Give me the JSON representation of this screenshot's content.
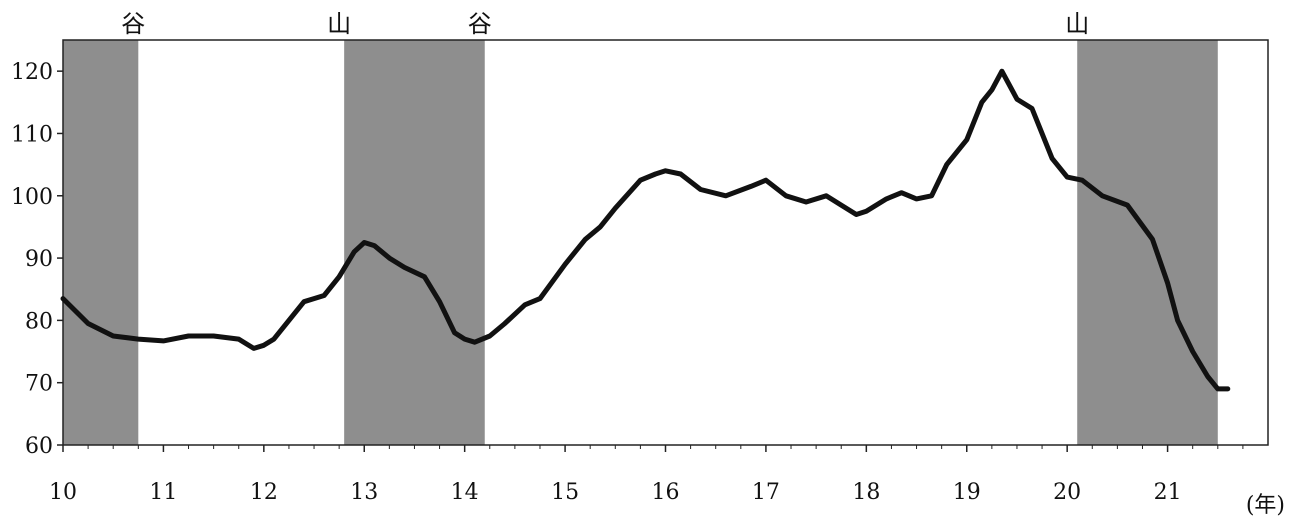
{
  "chart_data": {
    "type": "line",
    "title": "",
    "xlabel": "(年)",
    "ylabel": "",
    "xlim": [
      10,
      22
    ],
    "ylim": [
      60,
      125
    ],
    "x_ticks": [
      10,
      11,
      12,
      13,
      14,
      15,
      16,
      17,
      18,
      19,
      20,
      21
    ],
    "x_tick_labels": [
      "10",
      "11",
      "12",
      "13",
      "14",
      "15",
      "16",
      "17",
      "18",
      "19",
      "20",
      "21"
    ],
    "y_ticks": [
      60,
      70,
      80,
      90,
      100,
      110,
      120
    ],
    "y_tick_labels": [
      "60",
      "70",
      "80",
      "90",
      "100",
      "110",
      "120"
    ],
    "grid": false,
    "colors": {
      "line": "#111111",
      "shade": "#8e8e8e",
      "frame": "#222222"
    },
    "shaded_periods": [
      {
        "start": 10.0,
        "end": 10.75
      },
      {
        "start": 12.8,
        "end": 14.2
      },
      {
        "start": 20.1,
        "end": 21.5
      }
    ],
    "annotations": [
      {
        "text": "谷",
        "x": 10.7
      },
      {
        "text": "山",
        "x": 12.75
      },
      {
        "text": "谷",
        "x": 14.15
      },
      {
        "text": "山",
        "x": 20.1
      }
    ],
    "series": [
      {
        "x": [
          10.0,
          10.25,
          10.5,
          10.75,
          11.0,
          11.25,
          11.5,
          11.75,
          11.9,
          12.0,
          12.1,
          12.25,
          12.4,
          12.5,
          12.6,
          12.75,
          12.9,
          13.0,
          13.1,
          13.25,
          13.4,
          13.6,
          13.75,
          13.9,
          14.0,
          14.1,
          14.25,
          14.4,
          14.6,
          14.75,
          15.0,
          15.2,
          15.35,
          15.5,
          15.75,
          15.9,
          16.0,
          16.15,
          16.35,
          16.6,
          16.85,
          17.0,
          17.2,
          17.4,
          17.6,
          17.75,
          17.9,
          18.0,
          18.2,
          18.35,
          18.5,
          18.65,
          18.8,
          19.0,
          19.15,
          19.25,
          19.35,
          19.5,
          19.65,
          19.85,
          20.0,
          20.15,
          20.35,
          20.6,
          20.85,
          21.0,
          21.1,
          21.25,
          21.4,
          21.5,
          21.6
        ],
        "values": [
          83.5,
          79.5,
          77.5,
          77.0,
          76.7,
          77.5,
          77.5,
          77.0,
          75.5,
          76.0,
          77.0,
          80.0,
          83.0,
          83.5,
          84.0,
          87.0,
          91.0,
          92.5,
          92.0,
          90.0,
          88.5,
          87.0,
          83.0,
          78.0,
          77.0,
          76.5,
          77.5,
          79.5,
          82.5,
          83.5,
          89.0,
          93.0,
          95.0,
          98.0,
          102.5,
          103.5,
          104.0,
          103.5,
          101.0,
          100.0,
          101.5,
          102.5,
          100.0,
          99.0,
          100.0,
          98.5,
          97.0,
          97.5,
          99.5,
          100.5,
          99.5,
          100.0,
          105.0,
          109.0,
          115.0,
          117.0,
          120.0,
          115.5,
          114.0,
          106.0,
          103.0,
          102.5,
          100.0,
          98.5,
          93.0,
          86.0,
          80.0,
          75.0,
          71.0,
          69.0,
          69.0
        ]
      }
    ]
  }
}
